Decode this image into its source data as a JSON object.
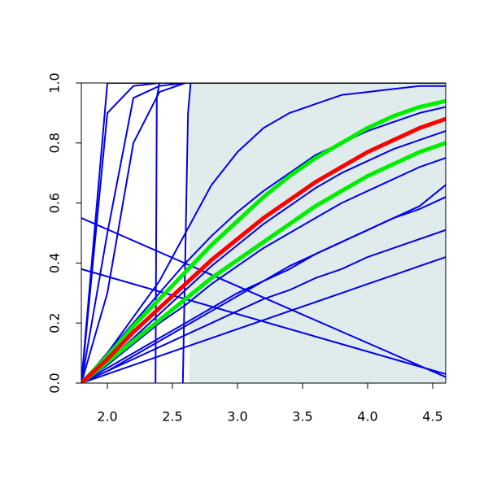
{
  "chart_data": {
    "type": "line",
    "x": [
      1.8,
      2.0,
      2.2,
      2.4,
      2.6,
      2.8,
      3.0,
      3.2,
      3.4,
      3.6,
      3.8,
      4.0,
      4.2,
      4.4,
      4.6
    ],
    "xlim": [
      1.8,
      4.6
    ],
    "ylim": [
      0,
      1
    ],
    "xticks": [
      {
        "value": 2,
        "label": "2.0"
      },
      2.5,
      {
        "value": 3,
        "label": "3.0"
      },
      3.5,
      {
        "value": 4,
        "label": "4.0"
      },
      4.5
    ],
    "yticks": [
      {
        "value": 0,
        "label": "0.0"
      },
      0.2,
      0.4,
      0.6,
      0.8,
      {
        "value": 1,
        "label": "1.0"
      }
    ],
    "band": {
      "from": 2.63,
      "to": 4.6,
      "color": "#e0ecec"
    },
    "series": [
      {
        "color": "#0000ee",
        "values": [
          0,
          1,
          1,
          1,
          1,
          1,
          1,
          1,
          1,
          1,
          1,
          1,
          1,
          1,
          1
        ]
      },
      {
        "color": "#0000ee",
        "values": [
          0,
          0.9,
          0.99,
          1,
          1,
          1,
          1,
          1,
          1,
          1,
          1,
          1,
          1,
          1,
          1
        ]
      },
      {
        "color": "#0000ee",
        "values": [
          0,
          0.5,
          0.95,
          0.99,
          1,
          1,
          1,
          1,
          1,
          1,
          1,
          1,
          1,
          1,
          1
        ]
      },
      {
        "color": "#0000ee",
        "values": [
          0,
          0.3,
          0.8,
          0.97,
          1,
          1,
          1,
          1,
          1,
          1,
          1,
          1,
          1,
          1,
          1
        ]
      },
      {
        "color": "#0000ee",
        "x": [
          2.37,
          2.38,
          2.4,
          2.6,
          4.6
        ],
        "values": [
          0,
          0.95,
          1,
          1,
          1
        ]
      },
      {
        "color": "#0000ee",
        "x": [
          2.58,
          2.62,
          2.64,
          4.6
        ],
        "values": [
          0,
          0.9,
          1,
          1
        ]
      },
      {
        "color": "#0000ee",
        "x": [
          1.8,
          4.6
        ],
        "values": [
          0.55,
          0.02
        ]
      },
      {
        "color": "#0000ee",
        "x": [
          1.8,
          4.6
        ],
        "values": [
          0.38,
          0.03
        ]
      },
      {
        "color": "#0000ee",
        "values": [
          0,
          0.1,
          0.22,
          0.34,
          0.5,
          0.66,
          0.77,
          0.85,
          0.9,
          0.93,
          0.96,
          0.97,
          0.98,
          0.99,
          0.99
        ]
      },
      {
        "color": "#0000ee",
        "values": [
          0,
          0.1,
          0.2,
          0.3,
          0.4,
          0.49,
          0.57,
          0.64,
          0.7,
          0.76,
          0.8,
          0.84,
          0.87,
          0.9,
          0.92
        ]
      },
      {
        "color": "#0000ee",
        "values": [
          0,
          0.07,
          0.15,
          0.23,
          0.31,
          0.39,
          0.46,
          0.53,
          0.59,
          0.65,
          0.7,
          0.74,
          0.78,
          0.81,
          0.84
        ]
      },
      {
        "color": "#0000ee",
        "values": [
          0,
          0.06,
          0.13,
          0.2,
          0.26,
          0.33,
          0.39,
          0.45,
          0.5,
          0.55,
          0.6,
          0.64,
          0.68,
          0.72,
          0.75
        ]
      },
      {
        "color": "#0000ee",
        "values": [
          0,
          0.04,
          0.09,
          0.14,
          0.19,
          0.24,
          0.29,
          0.34,
          0.38,
          0.43,
          0.47,
          0.51,
          0.55,
          0.59,
          0.66
        ]
      },
      {
        "color": "#0000ee",
        "values": [
          0,
          0.05,
          0.1,
          0.15,
          0.2,
          0.25,
          0.3,
          0.34,
          0.39,
          0.43,
          0.47,
          0.51,
          0.55,
          0.58,
          0.62
        ]
      },
      {
        "color": "#0000ee",
        "values": [
          0,
          0.04,
          0.08,
          0.12,
          0.16,
          0.2,
          0.24,
          0.28,
          0.31,
          0.35,
          0.38,
          0.42,
          0.45,
          0.48,
          0.51
        ]
      },
      {
        "color": "#0000ee",
        "values": [
          0,
          0.03,
          0.06,
          0.09,
          0.12,
          0.15,
          0.18,
          0.21,
          0.24,
          0.27,
          0.3,
          0.33,
          0.36,
          0.39,
          0.42
        ]
      },
      {
        "color": "#00ee00",
        "values": [
          0,
          0.09,
          0.19,
          0.28,
          0.37,
          0.46,
          0.54,
          0.62,
          0.69,
          0.75,
          0.8,
          0.85,
          0.89,
          0.92,
          0.94
        ]
      },
      {
        "color": "#00ee00",
        "values": [
          0,
          0.07,
          0.14,
          0.21,
          0.28,
          0.35,
          0.41,
          0.47,
          0.53,
          0.59,
          0.64,
          0.69,
          0.73,
          0.77,
          0.8
        ]
      },
      {
        "color": "#ff0000",
        "values": [
          0,
          0.08,
          0.17,
          0.25,
          0.33,
          0.41,
          0.48,
          0.55,
          0.61,
          0.67,
          0.72,
          0.77,
          0.81,
          0.85,
          0.88
        ]
      }
    ]
  }
}
